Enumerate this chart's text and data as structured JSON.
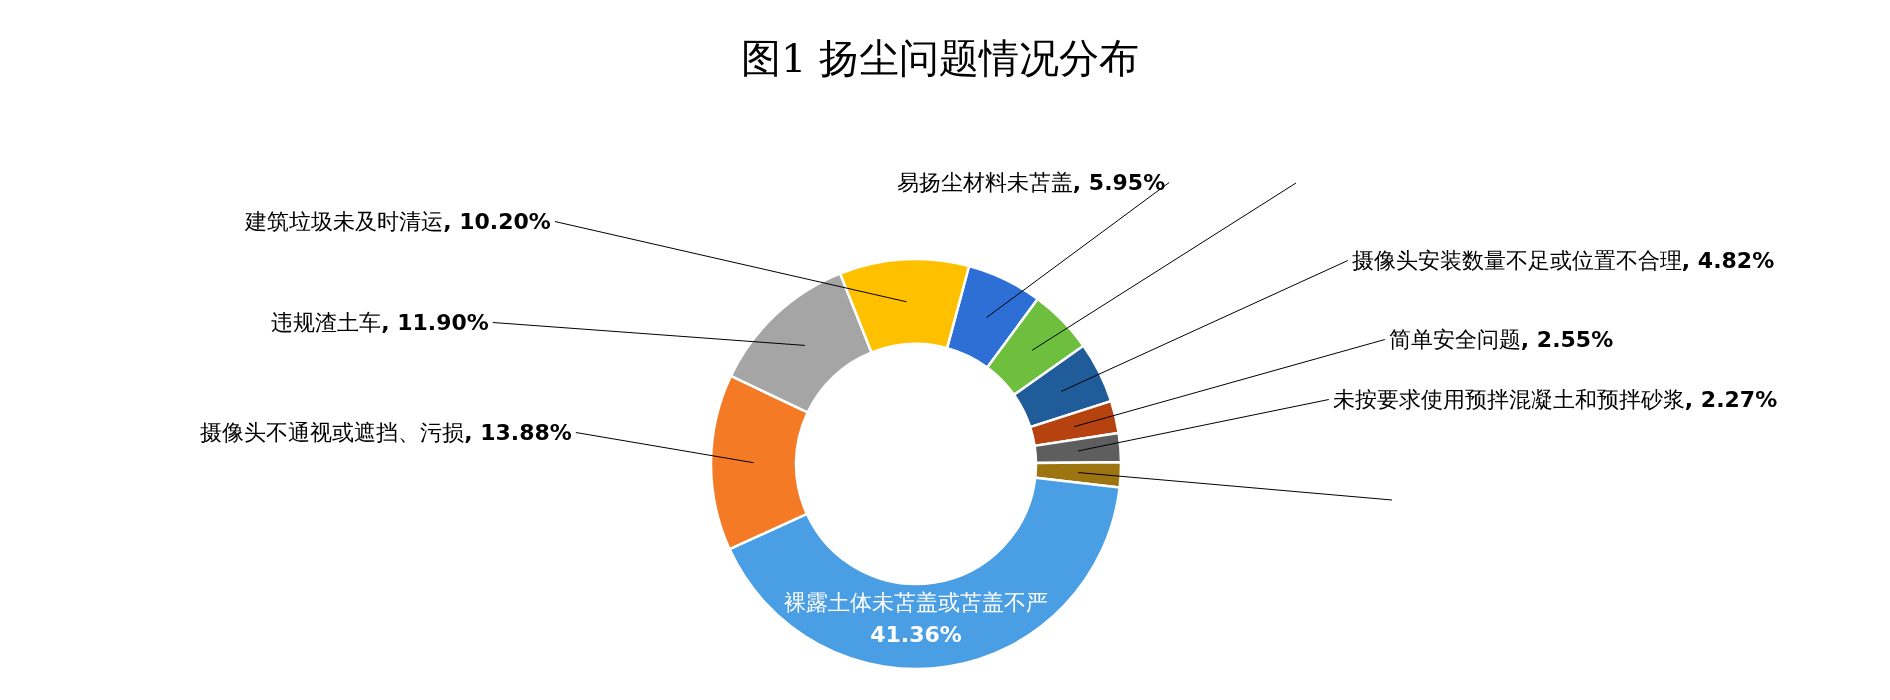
{
  "chart_data": {
    "type": "donut",
    "title": "图1  扬尘问题情况分布",
    "categories": [
      "易扬尘材料未苫盖",
      null,
      "摄像头安装数量不足或位置不合理",
      "简单安全问题",
      "未按要求使用预拌混凝土和预拌砂浆",
      null,
      "裸露土体未苫盖或苫盖不严",
      "摄像头不通视或遮挡、污损",
      "违规渣土车",
      "建筑垃圾未及时清运"
    ],
    "values": [
      5.95,
      5.1,
      4.82,
      2.55,
      2.27,
      1.97,
      41.36,
      13.88,
      11.9,
      10.2
    ],
    "colors": [
      "#2e6fd6",
      "#6fbf3f",
      "#1f5c99",
      "#b5420f",
      "#5e5e5e",
      "#9c7510",
      "#4a9ee3",
      "#f57a26",
      "#a5a5a5",
      "#ffc000"
    ],
    "value_labels": [
      ", 5.95%",
      null,
      ", 4.82%",
      ", 2.55%",
      ", 2.27%",
      null,
      "41.36%",
      ", 13.88%",
      ", 11.90%",
      ", 10.20%"
    ]
  }
}
